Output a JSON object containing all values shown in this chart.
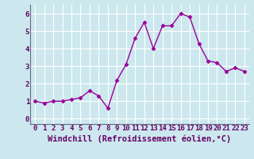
{
  "x": [
    0,
    1,
    2,
    3,
    4,
    5,
    6,
    7,
    8,
    9,
    10,
    11,
    12,
    13,
    14,
    15,
    16,
    17,
    18,
    19,
    20,
    21,
    22,
    23
  ],
  "y": [
    1.0,
    0.9,
    1.0,
    1.0,
    1.1,
    1.2,
    1.6,
    1.3,
    0.6,
    2.2,
    3.1,
    4.6,
    5.5,
    4.0,
    5.3,
    5.3,
    6.0,
    5.8,
    4.3,
    3.3,
    3.2,
    2.7,
    2.9,
    2.7
  ],
  "line_color": "#990099",
  "marker": "D",
  "marker_size": 2.5,
  "linewidth": 1.0,
  "bg_color": "#cce8ee",
  "grid_color": "#ffffff",
  "xlabel": "Windchill (Refroidissement éolien,°C)",
  "xlabel_color": "#660066",
  "tick_color": "#660066",
  "xlabel_fontsize": 7.5,
  "tick_label_fontsize": 6.5,
  "xlim": [
    -0.5,
    23.5
  ],
  "ylim": [
    -0.3,
    6.5
  ],
  "yticks": [
    0,
    1,
    2,
    3,
    4,
    5,
    6
  ],
  "xticks": [
    0,
    1,
    2,
    3,
    4,
    5,
    6,
    7,
    8,
    9,
    10,
    11,
    12,
    13,
    14,
    15,
    16,
    17,
    18,
    19,
    20,
    21,
    22,
    23
  ],
  "xtick_labels": [
    "0",
    "1",
    "2",
    "3",
    "4",
    "5",
    "6",
    "7",
    "8",
    "9",
    "10",
    "11",
    "12",
    "13",
    "14",
    "15",
    "16",
    "17",
    "18",
    "19",
    "20",
    "21",
    "22",
    "23"
  ]
}
